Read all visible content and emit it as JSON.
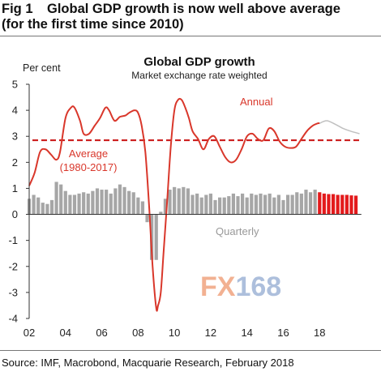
{
  "figure": {
    "number": "Fig 1",
    "title_line1": "Global GDP growth is now well above average",
    "title_line2": "(for the first time since 2010)",
    "source": "Source:  IMF, Macrobond, Macquarie Research, February 2018",
    "watermark": "FX168"
  },
  "colors": {
    "annual": "#d9372b",
    "average": "#cc1f1f",
    "quarterly": "#a6a6a6",
    "quarterly_forecast": "#e31a1c",
    "annual_forecast": "#c0c0c0",
    "watermark_fx": "#f0a480",
    "watermark_168": "#9fb5d6"
  },
  "chart_data": {
    "type": "line",
    "title": "Global GDP growth",
    "subtitle": "Market exchange rate weighted",
    "ylabel": "Per cent",
    "ylim": [
      -4,
      5
    ],
    "xlim": [
      2002,
      2020.4
    ],
    "yticks": [
      "-4",
      "-3",
      "-2",
      "-1",
      "0",
      "1",
      "2",
      "3",
      "4",
      "5"
    ],
    "xticks": [
      "02",
      "04",
      "06",
      "08",
      "10",
      "12",
      "14",
      "16",
      "18"
    ],
    "grid": false,
    "annotations": {
      "annual": "Annual",
      "average_line1": "Average",
      "average_line2": "(1980-2017)",
      "quarterly": "Quarterly"
    },
    "average_value": 2.85,
    "annual_series": {
      "name": "Annual",
      "x": [
        2002.0,
        2002.3,
        2002.6,
        2002.9,
        2003.2,
        2003.5,
        2003.7,
        2004.0,
        2004.3,
        2004.5,
        2004.8,
        2005.0,
        2005.3,
        2005.6,
        2005.9,
        2006.2,
        2006.4,
        2006.7,
        2007.0,
        2007.3,
        2007.5,
        2007.8,
        2008.0,
        2008.2,
        2008.4,
        2008.6,
        2008.8,
        2009.0,
        2009.1,
        2009.25,
        2009.4,
        2009.6,
        2009.8,
        2010.0,
        2010.2,
        2010.4,
        2010.6,
        2010.8,
        2011.0,
        2011.3,
        2011.6,
        2011.9,
        2012.2,
        2012.5,
        2012.8,
        2013.1,
        2013.4,
        2013.7,
        2014.0,
        2014.3,
        2014.6,
        2014.9,
        2015.2,
        2015.5,
        2015.8,
        2016.1,
        2016.4,
        2016.7,
        2017.0,
        2017.3,
        2017.6,
        2017.9,
        2018.0
      ],
      "y": [
        1.1,
        1.6,
        2.4,
        2.5,
        2.3,
        2.1,
        2.4,
        3.7,
        4.1,
        4.1,
        3.6,
        3.1,
        3.1,
        3.4,
        3.7,
        4.1,
        4.0,
        3.6,
        3.75,
        3.8,
        3.9,
        4.0,
        3.9,
        3.4,
        2.4,
        0.4,
        -2.0,
        -3.6,
        -3.5,
        -3.0,
        -1.5,
        0.5,
        2.6,
        4.0,
        4.4,
        4.4,
        4.1,
        3.7,
        3.2,
        2.9,
        2.5,
        2.9,
        3.0,
        2.6,
        2.2,
        2.0,
        2.1,
        2.5,
        3.0,
        3.1,
        2.9,
        2.85,
        3.3,
        3.2,
        2.8,
        2.6,
        2.55,
        2.6,
        2.9,
        3.2,
        3.4,
        3.5,
        3.5
      ]
    },
    "annual_forecast": {
      "name": "Annual forecast",
      "x": [
        2018.0,
        2018.4,
        2018.9,
        2019.3,
        2019.7,
        2020.2
      ],
      "y": [
        3.5,
        3.6,
        3.45,
        3.3,
        3.2,
        3.1
      ]
    },
    "quarterly_series": {
      "name": "Quarterly",
      "x": [
        2002.0,
        2002.25,
        2002.5,
        2002.75,
        2003.0,
        2003.25,
        2003.5,
        2003.75,
        2004.0,
        2004.25,
        2004.5,
        2004.75,
        2005.0,
        2005.25,
        2005.5,
        2005.75,
        2006.0,
        2006.25,
        2006.5,
        2006.75,
        2007.0,
        2007.25,
        2007.5,
        2007.75,
        2008.0,
        2008.25,
        2008.5,
        2008.75,
        2009.0,
        2009.25,
        2009.5,
        2009.75,
        2010.0,
        2010.25,
        2010.5,
        2010.75,
        2011.0,
        2011.25,
        2011.5,
        2011.75,
        2012.0,
        2012.25,
        2012.5,
        2012.75,
        2013.0,
        2013.25,
        2013.5,
        2013.75,
        2014.0,
        2014.25,
        2014.5,
        2014.75,
        2015.0,
        2015.25,
        2015.5,
        2015.75,
        2016.0,
        2016.25,
        2016.5,
        2016.75,
        2017.0,
        2017.25,
        2017.5,
        2017.75
      ],
      "y": [
        0.6,
        0.75,
        0.65,
        0.45,
        0.4,
        0.55,
        1.25,
        1.15,
        0.9,
        0.75,
        0.75,
        0.8,
        0.85,
        0.8,
        0.9,
        1.0,
        0.95,
        0.95,
        0.8,
        1.0,
        1.15,
        1.05,
        0.9,
        0.85,
        0.65,
        0.5,
        -0.3,
        -1.75,
        -1.75,
        0.1,
        0.6,
        0.95,
        1.05,
        1.0,
        1.05,
        1.0,
        0.75,
        0.8,
        0.65,
        0.75,
        0.8,
        0.55,
        0.65,
        0.65,
        0.7,
        0.8,
        0.7,
        0.8,
        0.65,
        0.8,
        0.75,
        0.8,
        0.75,
        0.8,
        0.65,
        0.75,
        0.55,
        0.75,
        0.75,
        0.85,
        0.8,
        0.95,
        0.85,
        0.95
      ]
    },
    "quarterly_forecast": {
      "name": "Quarterly forecast",
      "x": [
        2018.0,
        2018.25,
        2018.5,
        2018.75,
        2019.0,
        2019.25,
        2019.5,
        2019.75,
        2020.0
      ],
      "y": [
        0.85,
        0.8,
        0.78,
        0.78,
        0.75,
        0.75,
        0.75,
        0.73,
        0.72
      ]
    }
  }
}
